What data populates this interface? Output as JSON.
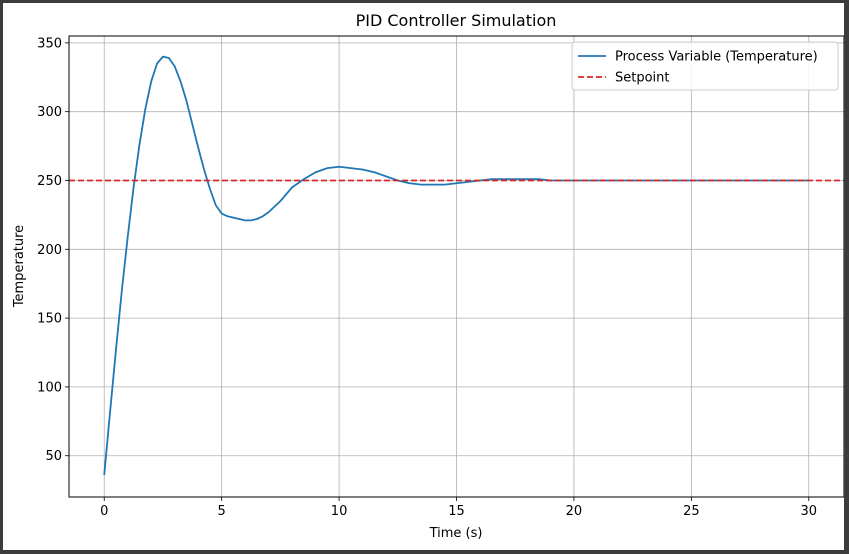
{
  "chart_data": {
    "type": "line",
    "title": "PID Controller Simulation",
    "xlabel": "Time (s)",
    "ylabel": "Temperature",
    "xlim": [
      -1.5,
      31.5
    ],
    "ylim": [
      20,
      355
    ],
    "xticks": [
      0,
      5,
      10,
      15,
      20,
      25,
      30
    ],
    "yticks": [
      50,
      100,
      150,
      200,
      250,
      300,
      350
    ],
    "grid": true,
    "legend_position": "top-right",
    "series": [
      {
        "name": "Process Variable (Temperature)",
        "color": "#1f77b4",
        "style": "solid",
        "x": [
          0,
          0.25,
          0.5,
          0.75,
          1.0,
          1.25,
          1.5,
          1.75,
          2.0,
          2.25,
          2.5,
          2.75,
          3.0,
          3.25,
          3.5,
          3.75,
          4.0,
          4.25,
          4.5,
          4.75,
          5.0,
          5.25,
          5.5,
          5.75,
          6.0,
          6.25,
          6.5,
          6.75,
          7.0,
          7.25,
          7.5,
          7.75,
          8.0,
          8.5,
          9.0,
          9.5,
          10.0,
          10.5,
          11.0,
          11.5,
          12.0,
          12.5,
          13.0,
          13.5,
          14.0,
          14.5,
          15.0,
          15.5,
          16.0,
          16.5,
          17.0,
          17.5,
          18.0,
          18.5,
          19.0,
          19.5,
          20.0,
          21.0,
          22.0,
          23.0,
          24.0,
          25.0,
          26.0,
          27.0,
          28.0,
          29.0,
          30.0
        ],
        "y": [
          36,
          82,
          127,
          170,
          209,
          245,
          276,
          302,
          322,
          335,
          340,
          339,
          333,
          322,
          308,
          291,
          274,
          258,
          244,
          232,
          226,
          224,
          223,
          222,
          221,
          221,
          222,
          224,
          227,
          231,
          235,
          240,
          245,
          251,
          256,
          259,
          260,
          259,
          258,
          256,
          253,
          250,
          248,
          247,
          247,
          247,
          248,
          249,
          250,
          251,
          251,
          251,
          251,
          251,
          250,
          250,
          250,
          250,
          250,
          250,
          250,
          250,
          250,
          250,
          250,
          250,
          250
        ]
      },
      {
        "name": "Setpoint",
        "color": "#d62728",
        "style": "dashed",
        "value": 250
      }
    ]
  }
}
